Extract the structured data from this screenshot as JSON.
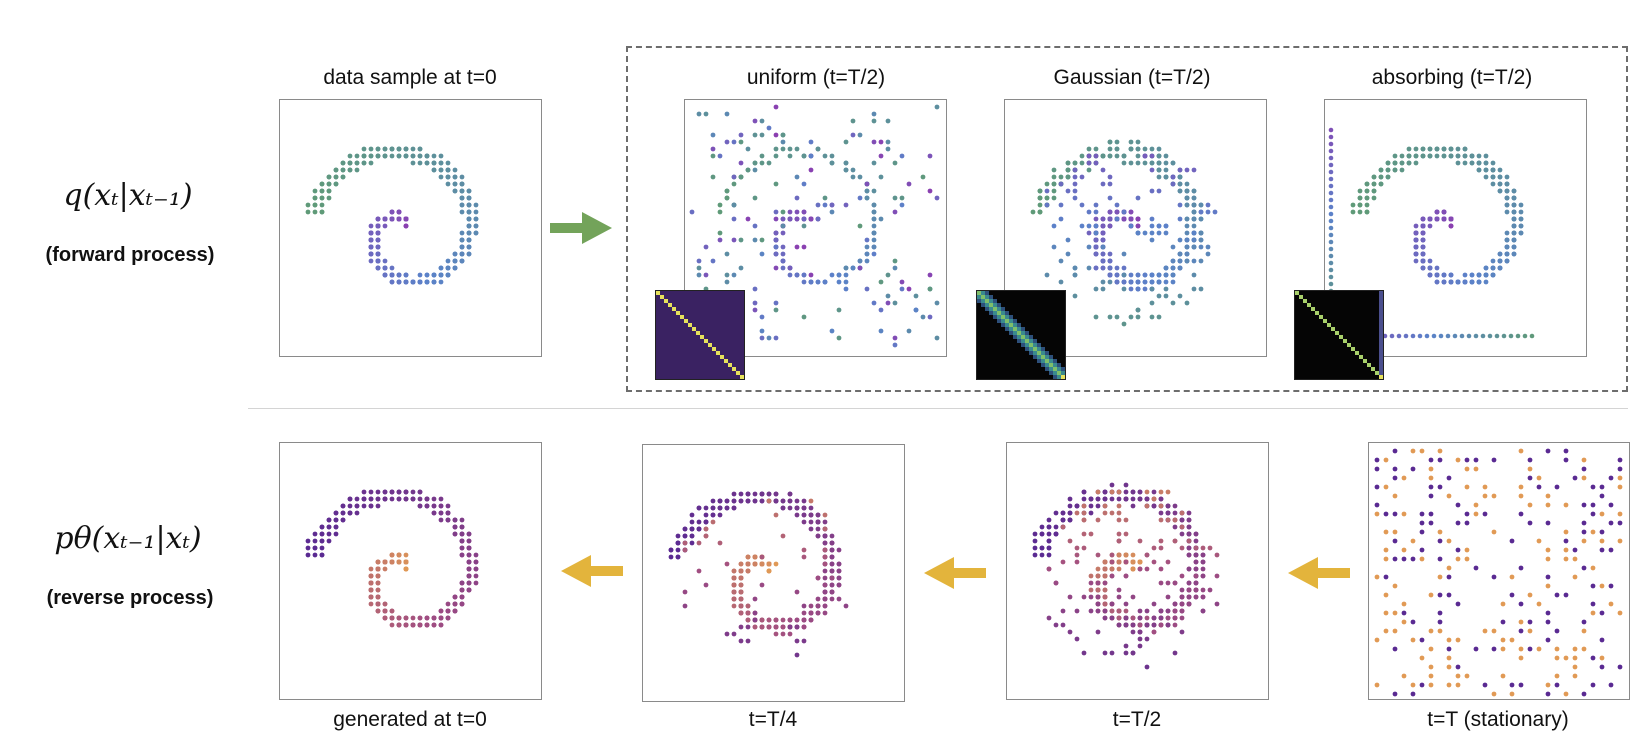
{
  "forward": {
    "equation": "q(xₜ|xₜ₋₁)",
    "label": "(forward process)",
    "data_sample_title": "data sample at t=0",
    "uniform_title": "uniform (t=T/2)",
    "gaussian_title": "Gaussian (t=T/2)",
    "absorbing_title": "absorbing (t=T/2)"
  },
  "reverse": {
    "equation": "pθ(xₜ₋₁|xₜ)",
    "label": "(reverse process)",
    "generated_caption": "generated at t=0",
    "t_quarter_caption": "t=T/4",
    "t_half_caption": "t=T/2",
    "t_full_caption": "t=T (stationary)"
  },
  "colors": {
    "forward_arrow": "#73a35a",
    "reverse_arrow": "#e3b43c",
    "forward_purple": "#8b3fb0",
    "forward_blue": "#5b82c9",
    "forward_green": "#5f9a78",
    "reverse_purple": "#5a2a92",
    "reverse_orange": "#e19a55",
    "matrix_uniform_bg": "#3a2262",
    "matrix_diag": "#e7e25c"
  }
}
